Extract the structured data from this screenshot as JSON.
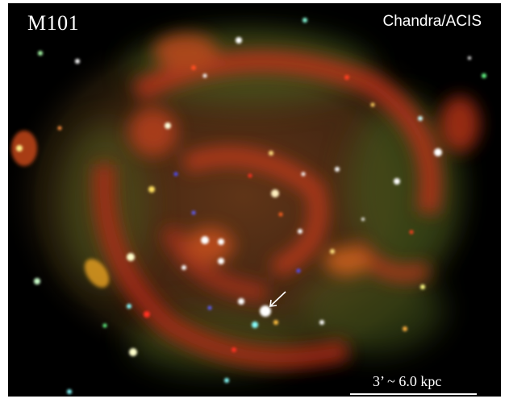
{
  "image": {
    "object_label": "M101",
    "instrument_label": "Chandra/ACIS",
    "scalebar_label": "3’ ~ 6.0 kpc",
    "background_color": "#000000",
    "marker_color": "#ffffff"
  }
}
